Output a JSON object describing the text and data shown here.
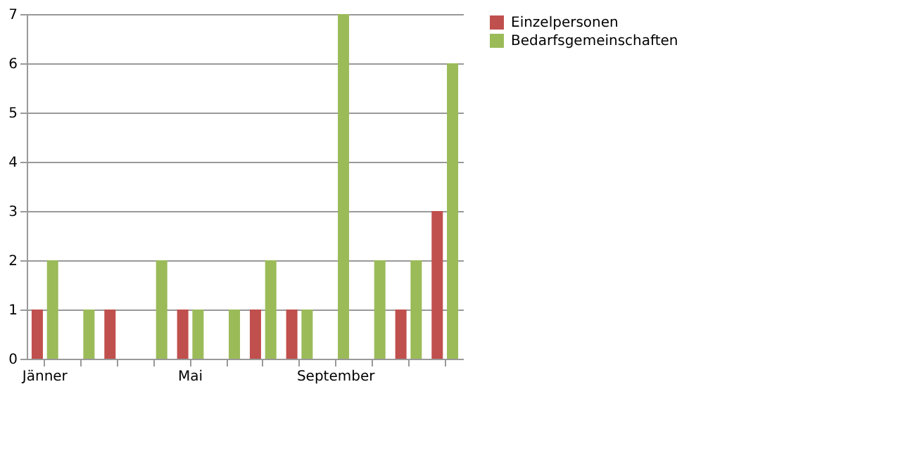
{
  "chart_data": {
    "type": "bar",
    "categories": [
      "Jänner",
      null,
      null,
      null,
      "Mai",
      null,
      null,
      null,
      "September",
      null,
      null,
      null
    ],
    "series": [
      {
        "name": "Einzelpersonen",
        "color": "#c0504d",
        "values": [
          1,
          0,
          1,
          0,
          1,
          0,
          1,
          1,
          0,
          0,
          1,
          3
        ]
      },
      {
        "name": "Bedarfsgemeinschaften",
        "color": "#9bbb59",
        "values": [
          2,
          1,
          0,
          2,
          1,
          1,
          2,
          1,
          7,
          2,
          2,
          6
        ]
      }
    ],
    "ylim": [
      0,
      7
    ],
    "yticks": [
      0,
      1,
      2,
      3,
      4,
      5,
      6,
      7
    ],
    "grid": "y",
    "legend": "right"
  }
}
